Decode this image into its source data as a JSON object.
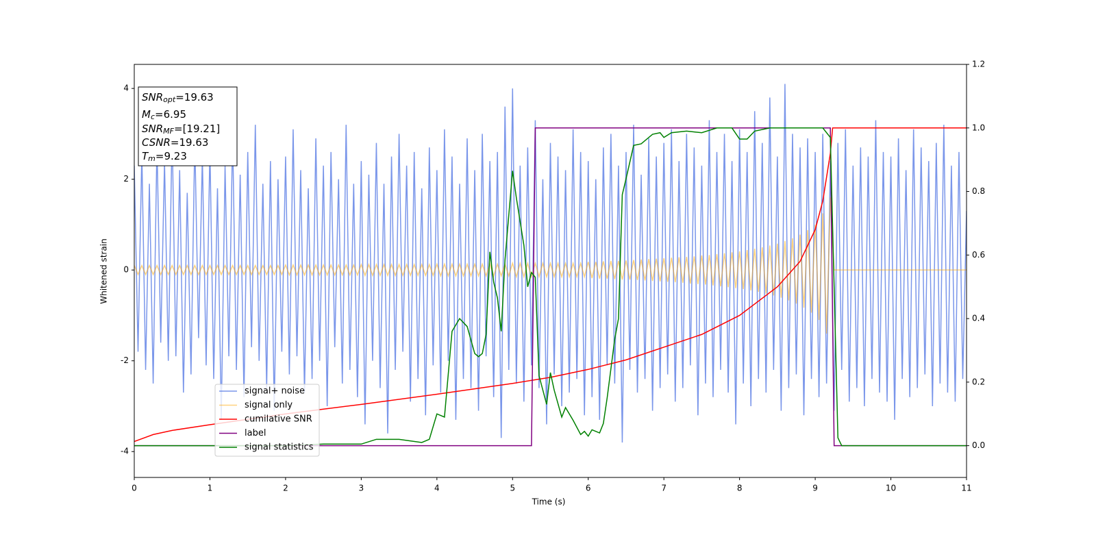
{
  "chart_data": {
    "type": "line",
    "xlabel": "Time (s)",
    "ylabel": "Whitened strain",
    "xlim": [
      0,
      11
    ],
    "xticks": [
      0,
      1,
      2,
      3,
      4,
      5,
      6,
      7,
      8,
      9,
      10,
      11
    ],
    "ylim": [
      -4.57,
      4.53
    ],
    "yticks": [
      -4,
      -2,
      0,
      2,
      4
    ],
    "y2lim": [
      -0.1,
      1.2
    ],
    "y2ticks": [
      {
        "value": 0,
        "label": "0.0"
      },
      {
        "value": 0.2,
        "label": "0.2"
      },
      {
        "value": 0.4,
        "label": "0.4"
      },
      {
        "value": 0.6,
        "label": "0.6"
      },
      {
        "value": 0.8,
        "label": "0.8"
      },
      {
        "value": 1,
        "label": "1.0"
      },
      {
        "value": 1.2,
        "label": "1.2"
      }
    ],
    "legend": "lower left",
    "annotation": [
      {
        "name": "SNR",
        "sub": "opt",
        "text": "=19.63"
      },
      {
        "name": "M",
        "sub": "c",
        "text": "=6.95"
      },
      {
        "name": "SNR",
        "sub": "MF",
        "text": "=[19.21]"
      },
      {
        "name": "CSNR",
        "text": "=19.63"
      },
      {
        "name": "T",
        "sub": "m",
        "text": "=9.23"
      }
    ],
    "x": [
      0,
      0.05,
      0.1,
      0.15,
      0.2,
      0.25,
      0.3,
      0.35,
      0.4,
      0.45,
      0.5,
      0.55,
      0.6,
      0.65,
      0.7,
      0.75,
      0.8,
      0.85,
      0.9,
      0.95,
      1,
      1.05,
      1.1,
      1.15,
      1.2,
      1.25,
      1.3,
      1.35,
      1.4,
      1.45,
      1.5,
      1.55,
      1.6,
      1.65,
      1.7,
      1.75,
      1.8,
      1.85,
      1.9,
      1.95,
      2,
      2.05,
      2.1,
      2.15,
      2.2,
      2.25,
      2.3,
      2.35,
      2.4,
      2.45,
      2.5,
      2.55,
      2.6,
      2.65,
      2.7,
      2.75,
      2.8,
      2.85,
      2.9,
      2.95,
      3,
      3.05,
      3.1,
      3.15,
      3.2,
      3.25,
      3.3,
      3.35,
      3.4,
      3.45,
      3.5,
      3.55,
      3.6,
      3.65,
      3.7,
      3.75,
      3.8,
      3.85,
      3.9,
      3.95,
      4,
      4.05,
      4.1,
      4.15,
      4.2,
      4.25,
      4.3,
      4.35,
      4.4,
      4.45,
      4.5,
      4.55,
      4.6,
      4.65,
      4.7,
      4.75,
      4.8,
      4.85,
      4.9,
      4.95,
      5,
      5.05,
      5.1,
      5.15,
      5.2,
      5.25,
      5.3,
      5.35,
      5.4,
      5.45,
      5.5,
      5.55,
      5.6,
      5.65,
      5.7,
      5.75,
      5.8,
      5.85,
      5.9,
      5.95,
      6,
      6.05,
      6.1,
      6.15,
      6.2,
      6.25,
      6.3,
      6.35,
      6.4,
      6.45,
      6.5,
      6.55,
      6.6,
      6.65,
      6.7,
      6.75,
      6.8,
      6.85,
      6.9,
      6.95,
      7,
      7.05,
      7.1,
      7.15,
      7.2,
      7.25,
      7.3,
      7.35,
      7.4,
      7.45,
      7.5,
      7.55,
      7.6,
      7.65,
      7.7,
      7.75,
      7.8,
      7.85,
      7.9,
      7.95,
      8,
      8.05,
      8.1,
      8.15,
      8.2,
      8.25,
      8.3,
      8.35,
      8.4,
      8.45,
      8.5,
      8.55,
      8.6,
      8.65,
      8.7,
      8.75,
      8.8,
      8.85,
      8.9,
      8.95,
      9,
      9.05,
      9.1,
      9.15,
      9.2,
      9.25,
      9.3,
      9.35,
      9.4,
      9.45,
      9.5,
      9.55,
      9.6,
      9.65,
      9.7,
      9.75,
      9.8,
      9.85,
      9.9,
      9.95,
      10,
      10.05,
      10.1,
      10.15,
      10.2,
      10.25,
      10.3,
      10.35,
      10.4,
      10.45,
      10.5,
      10.55,
      10.6,
      10.65,
      10.7,
      10.75,
      10.8,
      10.85,
      10.9,
      10.95,
      11
    ],
    "series": [
      {
        "name": "signal+ noise",
        "color": "#4169e1",
        "alpha": 0.7,
        "values": [
          2.3,
          -1.8,
          2.6,
          -2.2,
          1.9,
          -2.5,
          2.8,
          -1.6,
          2.4,
          -2.0,
          3.1,
          -1.9,
          2.2,
          -2.7,
          1.7,
          -2.3,
          2.9,
          -1.5,
          2.5,
          -2.1,
          2.7,
          -2.4,
          1.8,
          -3.3,
          2.3,
          -1.9,
          3.0,
          -2.2,
          2.1,
          -2.8,
          2.6,
          -1.7,
          3.2,
          -2.0,
          1.9,
          -2.6,
          2.4,
          -3.1,
          2.0,
          -1.8,
          2.5,
          -2.3,
          3.1,
          -1.9,
          2.2,
          -2.7,
          1.8,
          -2.4,
          2.9,
          -2.0,
          2.3,
          -3.0,
          2.6,
          -1.7,
          2.0,
          -2.5,
          3.2,
          -2.2,
          1.9,
          -2.8,
          2.4,
          -3.4,
          2.1,
          -2.0,
          2.8,
          -2.6,
          1.9,
          -3.6,
          2.5,
          -2.2,
          3.0,
          -1.8,
          2.3,
          -2.9,
          2.6,
          -2.4,
          1.8,
          -3.2,
          2.7,
          -2.1,
          2.2,
          -2.7,
          3.1,
          -2.0,
          2.5,
          -3.3,
          1.9,
          -2.4,
          2.9,
          -2.6,
          2.2,
          -3.1,
          3.0,
          -1.9,
          2.4,
          -2.8,
          2.6,
          -3.7,
          3.6,
          -2.2,
          4.0,
          -2.5,
          2.3,
          -2.9,
          2.7,
          -2.1,
          3.3,
          -2.6,
          2.0,
          -3.4,
          2.8,
          -2.3,
          2.5,
          -3.0,
          2.2,
          -2.7,
          3.1,
          -2.4,
          2.6,
          -3.2,
          2.4,
          -2.8,
          2.0,
          -3.3,
          2.7,
          -2.1,
          3.0,
          -2.5,
          2.3,
          -3.8,
          2.6,
          -2.2,
          3.2,
          -2.7,
          2.1,
          -2.4,
          2.9,
          -3.1,
          2.5,
          -2.6,
          2.8,
          -2.3,
          3.1,
          -2.9,
          2.4,
          -2.6,
          3.0,
          -2.1,
          2.7,
          -3.2,
          2.3,
          -2.5,
          3.3,
          -2.8,
          2.6,
          -2.2,
          3.0,
          -2.7,
          2.4,
          -3.4,
          3.1,
          -2.5,
          2.6,
          -3.0,
          3.5,
          -2.4,
          2.8,
          -2.7,
          3.8,
          -2.2,
          2.5,
          -3.1,
          4.1,
          -2.6,
          3.0,
          -2.3,
          2.7,
          -3.2,
          2.9,
          -2.4,
          2.6,
          -2.8,
          3.0,
          -2.5,
          2.4,
          -3.1,
          2.8,
          -2.2,
          3.1,
          -2.9,
          2.3,
          -2.6,
          2.7,
          -3.0,
          2.5,
          -2.4,
          3.3,
          -2.7,
          2.6,
          -2.9,
          2.5,
          -3.3,
          2.9,
          -2.4,
          2.2,
          -2.8,
          3.1,
          -2.6,
          2.7,
          -2.3,
          2.4,
          -3.0,
          2.8,
          -2.5,
          3.2,
          -2.7,
          2.3,
          -2.9,
          2.6,
          -2.4,
          1.3
        ]
      },
      {
        "name": "signal only",
        "color": "#ffa500",
        "alpha": 0.5,
        "values": [
          0.1,
          -0.1,
          0.1,
          -0.1,
          0.1,
          -0.1,
          0.1,
          -0.1,
          0.1,
          -0.1,
          0.1,
          -0.1,
          0.1,
          -0.1,
          0.1,
          -0.1,
          0.1,
          -0.1,
          0.1,
          -0.1,
          0.1,
          -0.1,
          0.1,
          -0.1,
          0.1,
          -0.1,
          0.1,
          -0.1,
          0.1,
          -0.1,
          0.1,
          -0.1,
          0.1,
          -0.1,
          0.1,
          -0.1,
          0.1,
          -0.1,
          0.1,
          -0.1,
          0.11,
          -0.11,
          0.11,
          -0.11,
          0.11,
          -0.11,
          0.11,
          -0.11,
          0.11,
          -0.11,
          0.11,
          -0.11,
          0.11,
          -0.11,
          0.11,
          -0.11,
          0.11,
          -0.11,
          0.11,
          -0.11,
          0.12,
          -0.12,
          0.12,
          -0.12,
          0.12,
          -0.12,
          0.12,
          -0.12,
          0.12,
          -0.12,
          0.12,
          -0.12,
          0.12,
          -0.12,
          0.12,
          -0.12,
          0.12,
          -0.12,
          0.12,
          -0.12,
          0.13,
          -0.13,
          0.13,
          -0.13,
          0.13,
          -0.13,
          0.13,
          -0.13,
          0.13,
          -0.13,
          0.13,
          -0.13,
          0.13,
          -0.13,
          0.13,
          -0.13,
          0.13,
          -0.13,
          0.13,
          -0.13,
          0.15,
          -0.15,
          0.15,
          -0.15,
          0.15,
          -0.15,
          0.15,
          -0.15,
          0.15,
          -0.15,
          0.15,
          -0.15,
          0.15,
          -0.15,
          0.15,
          -0.15,
          0.15,
          -0.15,
          0.15,
          -0.15,
          0.18,
          -0.18,
          0.18,
          -0.19,
          0.19,
          -0.19,
          0.2,
          -0.2,
          0.2,
          -0.21,
          0.21,
          -0.21,
          0.22,
          -0.22,
          0.23,
          -0.23,
          0.24,
          -0.24,
          0.25,
          -0.25,
          0.26,
          -0.26,
          0.27,
          -0.27,
          0.28,
          -0.28,
          0.29,
          -0.3,
          0.3,
          -0.31,
          0.32,
          -0.32,
          0.33,
          -0.34,
          0.35,
          -0.36,
          0.37,
          -0.38,
          0.39,
          -0.4,
          0.41,
          -0.42,
          0.44,
          -0.45,
          0.47,
          -0.48,
          0.5,
          -0.52,
          0.54,
          -0.56,
          0.58,
          -0.61,
          0.64,
          -0.67,
          0.7,
          -0.74,
          0.78,
          -0.83,
          0.88,
          -0.94,
          1.0,
          -1.1,
          1.25,
          -1.4,
          1.6,
          0,
          0,
          0,
          0,
          0,
          0,
          0,
          0,
          0,
          0,
          0,
          0,
          0,
          0,
          0,
          0,
          0,
          0,
          0,
          0,
          0,
          0,
          0,
          0,
          0,
          0,
          0,
          0,
          0,
          0,
          0,
          0,
          0,
          0,
          0,
          0
        ]
      },
      {
        "name": "cumilative SNR",
        "color": "#ff0000",
        "axis": "y2",
        "x": [
          0,
          0.25,
          0.5,
          1,
          1.5,
          2,
          3,
          4,
          5,
          5.5,
          6,
          6.5,
          7,
          7.5,
          8,
          8.5,
          8.8,
          9,
          9.1,
          9.2,
          9.23,
          11
        ],
        "values": [
          0.013,
          0.035,
          0.048,
          0.066,
          0.083,
          0.1,
          0.13,
          0.162,
          0.196,
          0.215,
          0.24,
          0.27,
          0.31,
          0.35,
          0.41,
          0.5,
          0.58,
          0.68,
          0.77,
          0.92,
          1,
          1
        ]
      },
      {
        "name": "label",
        "color": "#800080",
        "axis": "y2",
        "x": [
          0,
          5.25,
          5.3,
          9.2,
          9.25,
          11
        ],
        "values": [
          0,
          0,
          1,
          1,
          0,
          0
        ]
      },
      {
        "name": "signal statistics",
        "color": "#008000",
        "axis": "y2",
        "x": [
          0,
          0.5,
          1,
          2,
          2.5,
          3,
          3.2,
          3.5,
          3.8,
          3.9,
          4,
          4.1,
          4.2,
          4.3,
          4.4,
          4.5,
          4.55,
          4.6,
          4.65,
          4.7,
          4.75,
          4.8,
          4.85,
          4.9,
          5,
          5.05,
          5.15,
          5.2,
          5.25,
          5.3,
          5.35,
          5.45,
          5.5,
          5.55,
          5.65,
          5.7,
          5.8,
          5.9,
          5.95,
          6,
          6.05,
          6.15,
          6.2,
          6.25,
          6.35,
          6.4,
          6.45,
          6.5,
          6.6,
          6.7,
          6.75,
          6.85,
          6.95,
          7,
          7.1,
          7.3,
          7.5,
          7.7,
          7.9,
          8,
          8.1,
          8.2,
          8.4,
          9.1,
          9.2,
          9.25,
          9.3,
          9.35,
          11
        ],
        "values": [
          0,
          0,
          0,
          0,
          0.005,
          0.005,
          0.02,
          0.02,
          0.01,
          0.02,
          0.1,
          0.09,
          0.36,
          0.4,
          0.375,
          0.29,
          0.28,
          0.29,
          0.35,
          0.61,
          0.515,
          0.465,
          0.36,
          0.585,
          0.865,
          0.78,
          0.63,
          0.5,
          0.545,
          0.53,
          0.22,
          0.13,
          0.23,
          0.175,
          0.09,
          0.12,
          0.08,
          0.035,
          0.045,
          0.03,
          0.05,
          0.04,
          0.07,
          0.15,
          0.335,
          0.4,
          0.79,
          0.84,
          0.945,
          0.95,
          0.96,
          0.98,
          0.985,
          0.97,
          0.985,
          0.99,
          0.985,
          1,
          1,
          0.965,
          0.965,
          0.99,
          1,
          1,
          0.97,
          0.5,
          0.025,
          0,
          0
        ]
      }
    ]
  }
}
